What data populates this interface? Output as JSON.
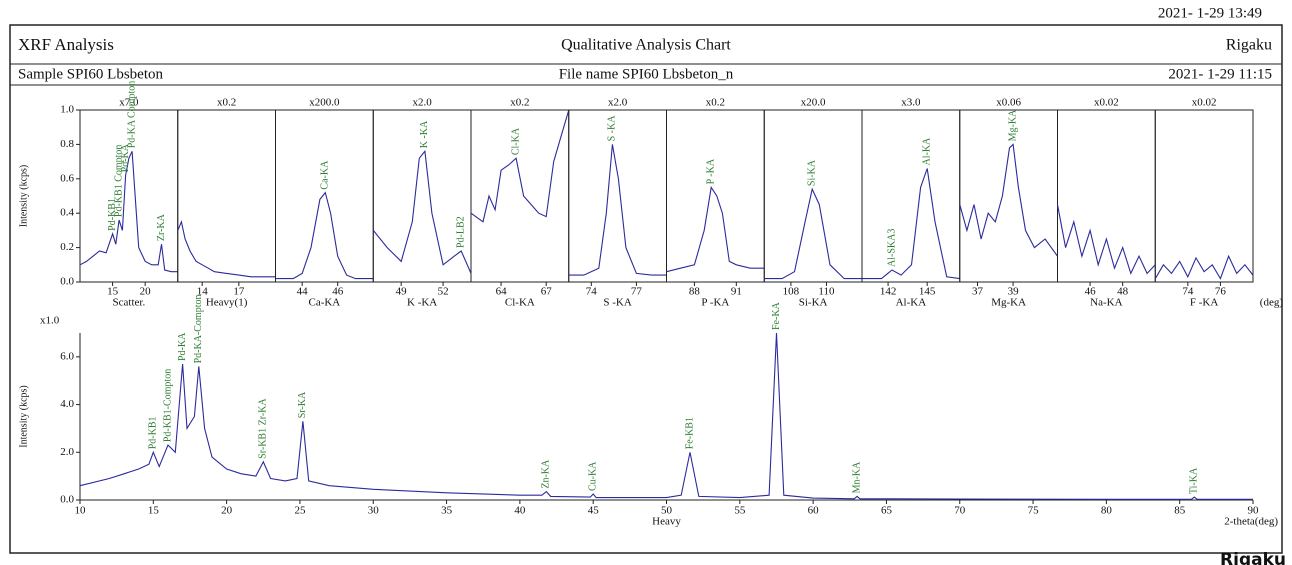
{
  "header": {
    "date": "2021- 1-29 13:49",
    "left": "XRF Analysis",
    "center": "Qualitative Analysis Chart",
    "right": "Rigaku",
    "sample": "Sample  SPI60  Lbsbeton",
    "file": "File name  SPI60  Lbsbeton_n",
    "measured": "2021- 1-29 11:15",
    "logo": "Rigaku"
  },
  "chart_data": [
    {
      "type": "panels",
      "ylabel": "Intensity (kcps)",
      "x_unit": "(deg)",
      "color": "#2b2b9c",
      "peak_color": "#2e7d32",
      "ylim": [
        0,
        1
      ],
      "yticks": [
        {
          "value": 0,
          "label": "0.0"
        },
        0.2,
        0.4,
        0.6,
        0.8,
        {
          "value": 1,
          "label": "1.0"
        }
      ],
      "panels": [
        {
          "scale": "x7.0",
          "name": "Scatter.",
          "xlim": [
            10,
            25
          ],
          "xticks": [
            15,
            20
          ],
          "x": [
            10,
            11,
            12,
            13,
            14,
            15,
            15.5,
            16,
            16.5,
            17,
            17.5,
            18,
            19,
            20,
            21,
            22,
            22.5,
            23,
            24,
            25
          ],
          "values": [
            0.1,
            0.12,
            0.15,
            0.18,
            0.17,
            0.28,
            0.22,
            0.36,
            0.3,
            0.62,
            0.72,
            0.76,
            0.2,
            0.12,
            0.1,
            0.1,
            0.22,
            0.07,
            0.06,
            0.06
          ],
          "peaks": [
            {
              "label": "Pd-KB1",
              "x": 15
            },
            {
              "label": "Pd-KB1 Compton",
              "x": 16
            },
            {
              "label": "Pd-KA",
              "x": 17
            },
            {
              "label": "Pd-KA Compton",
              "x": 18
            },
            {
              "label": "Zr-KA",
              "x": 22.5
            }
          ]
        },
        {
          "scale": "x0.2",
          "name": "Heavy(1)",
          "xlim": [
            12,
            20
          ],
          "xticks": [
            14,
            17
          ],
          "x": [
            12,
            12.3,
            12.6,
            13,
            13.5,
            14,
            14.5,
            15,
            16,
            17,
            18,
            19,
            20
          ],
          "values": [
            0.3,
            0.35,
            0.25,
            0.18,
            0.12,
            0.1,
            0.08,
            0.06,
            0.05,
            0.04,
            0.03,
            0.03,
            0.03
          ],
          "peaks": []
        },
        {
          "scale": "x200.0",
          "name": "Ca-KA",
          "xlim": [
            42.5,
            48
          ],
          "xticks": [
            44,
            46
          ],
          "x": [
            42.5,
            43.5,
            44,
            44.5,
            45,
            45.3,
            45.6,
            46,
            46.5,
            47,
            48
          ],
          "values": [
            0.02,
            0.02,
            0.05,
            0.2,
            0.48,
            0.52,
            0.4,
            0.15,
            0.04,
            0.02,
            0.02
          ],
          "peaks": [
            {
              "label": "Ca-KA",
              "x": 45.3
            }
          ]
        },
        {
          "scale": "x2.0",
          "name": "K -KA",
          "xlim": [
            47,
            54
          ],
          "xticks": [
            49,
            52
          ],
          "x": [
            47,
            48,
            49,
            49.8,
            50.3,
            50.7,
            51.2,
            52,
            52.8,
            53.3,
            54
          ],
          "values": [
            0.3,
            0.2,
            0.12,
            0.35,
            0.72,
            0.76,
            0.4,
            0.1,
            0.15,
            0.18,
            0.05
          ],
          "peaks": [
            {
              "label": "K -KA",
              "x": 50.7
            },
            {
              "label": "Pd-LB2",
              "x": 53.3
            }
          ]
        },
        {
          "scale": "x0.2",
          "name": "Cl-KA",
          "xlim": [
            62,
            68.5
          ],
          "xticks": [
            64,
            67
          ],
          "x": [
            62,
            62.8,
            63.2,
            63.6,
            64,
            64.5,
            65,
            65.5,
            66,
            66.5,
            67,
            67.5,
            68,
            68.5
          ],
          "values": [
            0.4,
            0.35,
            0.5,
            0.42,
            0.65,
            0.68,
            0.72,
            0.5,
            0.45,
            0.4,
            0.38,
            0.7,
            0.85,
            1
          ],
          "peaks": [
            {
              "label": "Cl-KA",
              "x": 65
            }
          ]
        },
        {
          "scale": "x2.0",
          "name": "S -KA",
          "xlim": [
            72.5,
            79
          ],
          "xticks": [
            74,
            77
          ],
          "x": [
            72.5,
            73.5,
            74.5,
            75,
            75.4,
            75.8,
            76.3,
            77,
            78,
            79
          ],
          "values": [
            0.04,
            0.04,
            0.08,
            0.4,
            0.8,
            0.6,
            0.2,
            0.05,
            0.04,
            0.04
          ],
          "peaks": [
            {
              "label": "S -KA",
              "x": 75.4
            }
          ]
        },
        {
          "scale": "x0.2",
          "name": "P -KA",
          "xlim": [
            86,
            93
          ],
          "xticks": [
            88,
            91
          ],
          "x": [
            86,
            87,
            88,
            88.7,
            89.2,
            89.6,
            90,
            90.5,
            91,
            92,
            93
          ],
          "values": [
            0.06,
            0.08,
            0.1,
            0.3,
            0.55,
            0.5,
            0.4,
            0.12,
            0.1,
            0.08,
            0.08
          ],
          "peaks": [
            {
              "label": "P -KA",
              "x": 89.2
            }
          ]
        },
        {
          "scale": "x20.0",
          "name": "Si-KA",
          "xlim": [
            106.5,
            112
          ],
          "xticks": [
            108,
            110
          ],
          "x": [
            106.5,
            107.5,
            108.2,
            108.8,
            109.2,
            109.6,
            110.2,
            111,
            112
          ],
          "values": [
            0.02,
            0.02,
            0.06,
            0.35,
            0.54,
            0.45,
            0.1,
            0.02,
            0.02
          ],
          "peaks": [
            {
              "label": "Si-KA",
              "x": 109.2
            }
          ]
        },
        {
          "scale": "x3.0",
          "name": "Al-KA",
          "xlim": [
            140,
            147.5
          ],
          "xticks": [
            142,
            145
          ],
          "x": [
            140,
            141.5,
            142.3,
            143,
            143.8,
            144.5,
            145,
            145.6,
            146.5,
            147.5
          ],
          "values": [
            0.02,
            0.02,
            0.07,
            0.04,
            0.1,
            0.55,
            0.66,
            0.35,
            0.03,
            0.02
          ],
          "peaks": [
            {
              "label": "Al-SKA3",
              "x": 142.3
            },
            {
              "label": "Al-KA",
              "x": 145
            }
          ]
        },
        {
          "scale": "x0.06",
          "name": "Mg-KA",
          "xlim": [
            36,
            41.5
          ],
          "xticks": [
            37,
            39
          ],
          "x": [
            36,
            36.4,
            36.8,
            37.2,
            37.6,
            38,
            38.4,
            38.8,
            39,
            39.3,
            39.7,
            40.2,
            40.8,
            41.5
          ],
          "values": [
            0.45,
            0.3,
            0.45,
            0.25,
            0.4,
            0.35,
            0.5,
            0.78,
            0.8,
            0.55,
            0.3,
            0.2,
            0.25,
            0.15
          ],
          "peaks": [
            {
              "label": "Mg-KA",
              "x": 39
            }
          ]
        },
        {
          "scale": "x0.02",
          "name": "Na-KA",
          "xlim": [
            44,
            50
          ],
          "xticks": [
            46,
            48
          ],
          "x": [
            44,
            44.5,
            45,
            45.5,
            46,
            46.5,
            47,
            47.5,
            48,
            48.5,
            49,
            49.5,
            50
          ],
          "values": [
            0.45,
            0.2,
            0.35,
            0.15,
            0.3,
            0.1,
            0.25,
            0.08,
            0.2,
            0.05,
            0.15,
            0.05,
            0.1
          ],
          "peaks": []
        },
        {
          "scale": "x0.02",
          "name": "F -KA",
          "xlim": [
            72,
            78
          ],
          "xticks": [
            74,
            76
          ],
          "x": [
            72,
            72.5,
            73,
            73.5,
            74,
            74.5,
            75,
            75.5,
            76,
            76.5,
            77,
            77.5,
            78
          ],
          "values": [
            0.02,
            0.1,
            0.05,
            0.12,
            0.03,
            0.14,
            0.06,
            0.1,
            0.02,
            0.15,
            0.05,
            0.1,
            0.04
          ],
          "peaks": []
        }
      ]
    },
    {
      "type": "line",
      "scale": "x1.0",
      "ylabel": "Intensity (kcps)",
      "xlabel": "Heavy",
      "x_unit": "2-theta(deg)",
      "color": "#2b2b9c",
      "peak_color": "#2e7d32",
      "xlim": [
        10,
        90
      ],
      "xticks": [
        10,
        15,
        20,
        25,
        30,
        35,
        40,
        45,
        50,
        55,
        60,
        65,
        70,
        75,
        80,
        85,
        90
      ],
      "ylim": [
        0,
        7
      ],
      "yticks": [
        {
          "value": 0,
          "label": "0.0"
        },
        {
          "value": 2,
          "label": "2.0"
        },
        {
          "value": 4,
          "label": "4.0"
        },
        {
          "value": 6,
          "label": "6.0"
        }
      ],
      "x": [
        10,
        12,
        13,
        14,
        14.7,
        15,
        15.4,
        16,
        16.5,
        17,
        17.3,
        17.8,
        18.1,
        18.5,
        19,
        20,
        21,
        22,
        22.5,
        23,
        24,
        24.8,
        25.2,
        25.6,
        27,
        30,
        35,
        40,
        41.5,
        41.8,
        42.1,
        44.8,
        45,
        45.2,
        50,
        51,
        51.6,
        52.2,
        55,
        57,
        57.5,
        58,
        60,
        62.8,
        63,
        63.2,
        70,
        80,
        85.8,
        86,
        86.2,
        90
      ],
      "values": [
        0.6,
        0.9,
        1.1,
        1.3,
        1.5,
        2.0,
        1.4,
        2.3,
        2.0,
        5.7,
        3.0,
        3.5,
        5.6,
        3.0,
        1.8,
        1.3,
        1.1,
        1.0,
        1.6,
        0.9,
        0.8,
        0.9,
        3.3,
        0.8,
        0.6,
        0.45,
        0.3,
        0.2,
        0.2,
        0.35,
        0.15,
        0.12,
        0.25,
        0.1,
        0.1,
        0.2,
        2.0,
        0.15,
        0.1,
        0.2,
        7,
        0.2,
        0.08,
        0.05,
        0.15,
        0.05,
        0.04,
        0.03,
        0.03,
        0.12,
        0.03,
        0.03
      ],
      "peaks": [
        {
          "label": "Pd-KB1",
          "x": 15
        },
        {
          "label": "Pd-KB1-Compton",
          "x": 16
        },
        {
          "label": "Pd-KA",
          "x": 17
        },
        {
          "label": "Pd-KA-Compton",
          "x": 18.1
        },
        {
          "label": "Sr-KB1 Zr-KA",
          "x": 22.5
        },
        {
          "label": "Sr-KA",
          "x": 25.2
        },
        {
          "label": "Zn-KA",
          "x": 41.8
        },
        {
          "label": "Cu-KA",
          "x": 45
        },
        {
          "label": "Fe-KB1",
          "x": 51.6
        },
        {
          "label": "Fe-KA",
          "x": 57.5
        },
        {
          "label": "Mn-KA",
          "x": 63
        },
        {
          "label": "Ti-KA",
          "x": 86
        }
      ]
    }
  ]
}
